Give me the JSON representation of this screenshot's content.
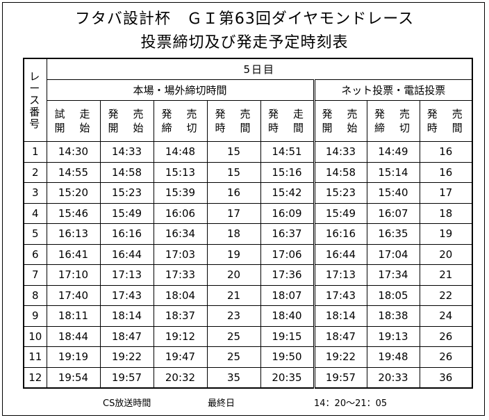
{
  "title_line1": "フタバ設計杯　ＧＩ第63回ダイヤモンドレース",
  "title_line2": "投票締切及び発走予定時刻表",
  "table": {
    "race_number_header": [
      "レ",
      "ー",
      "ス",
      "番",
      "号"
    ],
    "day_label": "5日目",
    "group_onsite": "本場・場外締切時間",
    "group_online": "ネット投票・電話投票",
    "onsite_columns": [
      [
        "試　走",
        "開　始"
      ],
      [
        "発　売",
        "開　始"
      ],
      [
        "発　売",
        "締　切"
      ],
      [
        "発　売",
        "時　間"
      ],
      [
        "発　走",
        "時　間"
      ]
    ],
    "online_columns": [
      [
        "発　売",
        "開　始"
      ],
      [
        "発　売",
        "締　切"
      ],
      [
        "発　売",
        "時　間"
      ]
    ],
    "rows": [
      [
        "1",
        "14:30",
        "14:33",
        "14:48",
        "15",
        "14:51",
        "14:33",
        "14:49",
        "16"
      ],
      [
        "2",
        "14:55",
        "14:58",
        "15:13",
        "15",
        "15:16",
        "14:58",
        "15:14",
        "16"
      ],
      [
        "3",
        "15:20",
        "15:23",
        "15:39",
        "16",
        "15:42",
        "15:23",
        "15:40",
        "17"
      ],
      [
        "4",
        "15:46",
        "15:49",
        "16:06",
        "17",
        "16:09",
        "15:49",
        "16:07",
        "18"
      ],
      [
        "5",
        "16:13",
        "16:16",
        "16:34",
        "18",
        "16:37",
        "16:16",
        "16:35",
        "19"
      ],
      [
        "6",
        "16:41",
        "16:44",
        "17:03",
        "19",
        "17:06",
        "16:44",
        "17:04",
        "20"
      ],
      [
        "7",
        "17:10",
        "17:13",
        "17:33",
        "20",
        "17:36",
        "17:13",
        "17:34",
        "21"
      ],
      [
        "8",
        "17:40",
        "17:43",
        "18:04",
        "21",
        "18:07",
        "17:43",
        "18:05",
        "22"
      ],
      [
        "9",
        "18:11",
        "18:14",
        "18:37",
        "23",
        "18:40",
        "18:14",
        "18:38",
        "24"
      ],
      [
        "10",
        "18:44",
        "18:47",
        "19:12",
        "25",
        "19:15",
        "18:47",
        "19:13",
        "26"
      ],
      [
        "11",
        "19:19",
        "19:22",
        "19:47",
        "25",
        "19:50",
        "19:22",
        "19:48",
        "26"
      ],
      [
        "12",
        "19:54",
        "19:57",
        "20:32",
        "35",
        "20:35",
        "19:57",
        "20:33",
        "36"
      ]
    ]
  },
  "footer": {
    "broadcast_label": "CS放送時間",
    "day_label": "最終日",
    "time_range": "14：20～21：05"
  }
}
